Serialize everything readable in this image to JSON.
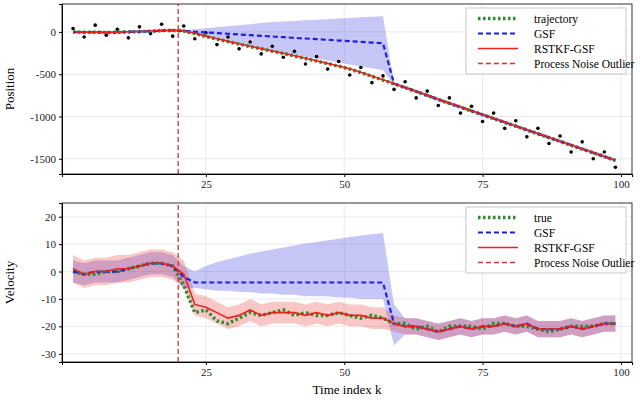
{
  "chart_data": [
    {
      "type": "line",
      "y_label": "Position",
      "x": [
        1,
        3,
        5,
        7,
        9,
        11,
        13,
        15,
        17,
        19,
        21,
        23,
        25,
        27,
        29,
        31,
        33,
        35,
        37,
        39,
        41,
        43,
        45,
        47,
        49,
        51,
        53,
        55,
        57,
        59,
        61,
        63,
        65,
        67,
        69,
        71,
        73,
        75,
        77,
        79,
        81,
        83,
        85,
        87,
        89,
        91,
        93,
        95,
        97,
        99
      ],
      "xlim": [
        -1,
        102
      ],
      "xticks": [
        25,
        50,
        75,
        100
      ],
      "ylim": [
        -1680,
        330
      ],
      "yticks": [
        -1500,
        -1000,
        -500,
        0
      ],
      "grid": true,
      "legend": "top-right",
      "series": [
        {
          "type": "scatter",
          "marker": "circle",
          "color": "#000000",
          "values": [
            40,
            -60,
            80,
            -40,
            30,
            -70,
            60,
            -20,
            90,
            -50,
            70,
            -80,
            -10,
            -150,
            -60,
            -200,
            -120,
            -260,
            -170,
            -300,
            -230,
            -380,
            -290,
            -440,
            -350,
            -510,
            -420,
            -600,
            -520,
            -680,
            -590,
            -780,
            -700,
            -870,
            -780,
            -960,
            -880,
            -1060,
            -960,
            -1140,
            -1050,
            -1240,
            -1140,
            -1320,
            -1230,
            -1420,
            -1300,
            -1500,
            -1420,
            -1600
          ]
        },
        {
          "name": "trajectory",
          "color": "#2e8b2e",
          "line_style": "dotted",
          "values": [
            0,
            -5,
            -3,
            -8,
            -5,
            0,
            3,
            8,
            15,
            18,
            10,
            -20,
            -55,
            -85,
            -115,
            -145,
            -172,
            -200,
            -228,
            -255,
            -285,
            -315,
            -345,
            -375,
            -405,
            -440,
            -480,
            -525,
            -570,
            -615,
            -660,
            -705,
            -752,
            -800,
            -845,
            -890,
            -935,
            -980,
            -1025,
            -1070,
            -1115,
            -1160,
            -1205,
            -1250,
            -1295,
            -1340,
            -1385,
            -1430,
            -1475,
            -1520
          ]
        },
        {
          "name": "GSF",
          "color": "#1f1fe0",
          "line_style": "dashed",
          "values": [
            0,
            -4,
            -2,
            -7,
            -4,
            1,
            4,
            9,
            15,
            19,
            10,
            2,
            -6,
            -14,
            -22,
            -30,
            -38,
            -46,
            -54,
            -62,
            -70,
            -78,
            -86,
            -94,
            -102,
            -110,
            -118,
            -126,
            -134,
            -612,
            -658,
            -703,
            -750,
            -798,
            -843,
            -888,
            -933,
            -978,
            -1023,
            -1068,
            -1113,
            -1158,
            -1203,
            -1248,
            -1293,
            -1338,
            -1383,
            -1428,
            -1473,
            -1518
          ],
          "lower": [
            -15,
            -19,
            -17,
            -22,
            -19,
            -14,
            -11,
            -6,
            0,
            4,
            -5,
            -28,
            -56,
            -84,
            -112,
            -140,
            -168,
            -196,
            -224,
            -247,
            -270,
            -293,
            -316,
            -339,
            -362,
            -385,
            -408,
            -431,
            -454,
            -632,
            -678,
            -723,
            -770,
            -818,
            -863,
            -908,
            -953,
            -998,
            -1043,
            -1088,
            -1133,
            -1178,
            -1223,
            -1268,
            -1313,
            -1358,
            -1403,
            -1448,
            -1493,
            -1538
          ],
          "upper": [
            15,
            11,
            13,
            8,
            11,
            16,
            19,
            24,
            30,
            34,
            25,
            32,
            44,
            56,
            68,
            80,
            92,
            104,
            116,
            123,
            130,
            137,
            144,
            151,
            158,
            165,
            172,
            179,
            186,
            -592,
            -638,
            -683,
            -730,
            -778,
            -823,
            -868,
            -913,
            -958,
            -1003,
            -1048,
            -1093,
            -1138,
            -1183,
            -1228,
            -1273,
            -1318,
            -1363,
            -1408,
            -1453,
            -1498
          ]
        },
        {
          "name": "RSTKF-GSF",
          "color": "#e8221c",
          "line_style": "solid",
          "values": [
            2,
            -3,
            -1,
            -6,
            -3,
            2,
            5,
            10,
            16,
            20,
            12,
            -15,
            -50,
            -82,
            -112,
            -140,
            -170,
            -198,
            -225,
            -252,
            -282,
            -312,
            -342,
            -372,
            -402,
            -436,
            -476,
            -520,
            -566,
            -610,
            -656,
            -702,
            -748,
            -796,
            -842,
            -886,
            -932,
            -976,
            -1022,
            -1066,
            -1112,
            -1156,
            -1202,
            -1246,
            -1292,
            -1336,
            -1382,
            -1426,
            -1472,
            -1516
          ]
        },
        {
          "name": "Process Noise Outlier",
          "type": "vline",
          "color": "#e03030",
          "line_style": "dashed",
          "x": [
            20
          ]
        }
      ]
    },
    {
      "type": "line",
      "y_label": "Velocity",
      "x_label": "Time index k",
      "x": [
        1,
        3,
        5,
        7,
        9,
        11,
        13,
        15,
        17,
        19,
        21,
        23,
        25,
        27,
        29,
        31,
        33,
        35,
        37,
        39,
        41,
        43,
        45,
        47,
        49,
        51,
        53,
        55,
        57,
        59,
        61,
        63,
        65,
        67,
        69,
        71,
        73,
        75,
        77,
        79,
        81,
        83,
        85,
        87,
        89,
        91,
        93,
        95,
        97,
        99
      ],
      "xlim": [
        -1,
        102
      ],
      "xticks": [
        25,
        50,
        75,
        100
      ],
      "ylim": [
        -33,
        25
      ],
      "yticks": [
        -30,
        -20,
        -10,
        0,
        10,
        20
      ],
      "grid": true,
      "legend": "top-right",
      "series": [
        {
          "name": "true",
          "color": "#2e8b2e",
          "line_style": "dotted",
          "values": [
            0,
            -1,
            -1,
            0,
            0,
            1,
            2,
            3,
            3,
            2,
            -5,
            -15,
            -14,
            -18,
            -19,
            -17,
            -15,
            -16,
            -15,
            -14,
            -16,
            -15,
            -16,
            -16,
            -15,
            -16,
            -17,
            -16,
            -17,
            -19,
            -19,
            -21,
            -20,
            -22,
            -20,
            -20,
            -20,
            -21,
            -19,
            -19,
            -20,
            -20,
            -21,
            -22,
            -21,
            -20,
            -20,
            -20,
            -19,
            -19
          ]
        },
        {
          "name": "GSF",
          "color": "#1f1fe0",
          "line_style": "dashed",
          "values": [
            0,
            -1,
            0,
            0,
            0,
            1,
            2,
            3,
            3,
            2,
            -2,
            -4,
            -4,
            -4,
            -4,
            -4,
            -4,
            -4,
            -4,
            -4,
            -4,
            -4,
            -4,
            -4,
            -4,
            -4,
            -4,
            -4,
            -4,
            -19,
            -20,
            -20,
            -21,
            -22,
            -21,
            -20,
            -21,
            -20,
            -20,
            -19,
            -20,
            -19,
            -21,
            -21,
            -21,
            -20,
            -21,
            -20,
            -19,
            -19
          ],
          "lower": [
            -4,
            -5,
            -4,
            -4,
            -4,
            -3,
            -2,
            -1,
            -1,
            -2,
            -6,
            -6,
            -6.5,
            -7,
            -7,
            -7.5,
            -7.5,
            -8,
            -8,
            -8.5,
            -8.5,
            -9,
            -9,
            -9,
            -9.5,
            -9.5,
            -10,
            -10,
            -10,
            -27,
            -23,
            -23,
            -24,
            -25,
            -24,
            -23,
            -24,
            -23,
            -23,
            -22,
            -23,
            -22,
            -24,
            -24,
            -24,
            -23,
            -24,
            -23,
            -22,
            -22
          ],
          "upper": [
            4,
            3,
            4,
            4,
            4,
            5,
            6,
            7,
            7,
            6,
            2,
            0,
            2,
            3.5,
            4.5,
            5.5,
            6.5,
            7.3,
            8,
            8.8,
            9.5,
            10.2,
            10.8,
            11.4,
            12,
            12.6,
            13.1,
            13.6,
            14.1,
            -12,
            -17,
            -17,
            -18,
            -19,
            -18,
            -17,
            -18,
            -17,
            -17,
            -16,
            -17,
            -16,
            -18,
            -18,
            -18,
            -17,
            -18,
            -17,
            -16,
            -16
          ]
        },
        {
          "name": "RSTKF-GSF",
          "color": "#e8221c",
          "line_style": "solid",
          "values": [
            1,
            -1,
            0,
            0,
            1,
            1,
            2,
            3,
            3,
            2,
            -1,
            -12,
            -13,
            -15,
            -17,
            -16,
            -14,
            -16,
            -15,
            -15,
            -15,
            -16,
            -15,
            -16,
            -15,
            -16,
            -16,
            -17,
            -17,
            -19,
            -20,
            -20,
            -21,
            -22,
            -21,
            -20,
            -21,
            -20,
            -20,
            -19,
            -20,
            -19,
            -21,
            -21,
            -21,
            -20,
            -21,
            -20,
            -19,
            -19
          ],
          "lower": [
            -4,
            -6,
            -5,
            -5,
            -4,
            -4,
            -3,
            -2,
            -2,
            -3,
            -6,
            -16,
            -17,
            -19,
            -21,
            -20,
            -18,
            -20,
            -19,
            -19,
            -19,
            -20,
            -19,
            -20,
            -19,
            -20,
            -20,
            -21,
            -21,
            -22,
            -23,
            -23,
            -24,
            -25,
            -24,
            -23,
            -24,
            -23,
            -23,
            -22,
            -23,
            -22,
            -24,
            -24,
            -24,
            -23,
            -24,
            -23,
            -22,
            -22
          ],
          "upper": [
            6,
            4,
            5,
            5,
            6,
            6,
            7,
            8,
            8,
            7,
            4,
            -8,
            -9,
            -11,
            -13,
            -12,
            -10,
            -12,
            -11,
            -11,
            -11,
            -12,
            -11,
            -12,
            -11,
            -12,
            -12,
            -13,
            -13,
            -16,
            -17,
            -17,
            -18,
            -19,
            -18,
            -17,
            -18,
            -17,
            -17,
            -16,
            -17,
            -16,
            -18,
            -18,
            -18,
            -17,
            -18,
            -17,
            -16,
            -16
          ]
        },
        {
          "name": "Process Noise Outlier",
          "type": "vline",
          "color": "#e03030",
          "line_style": "dashed",
          "x": [
            20
          ]
        }
      ]
    }
  ]
}
